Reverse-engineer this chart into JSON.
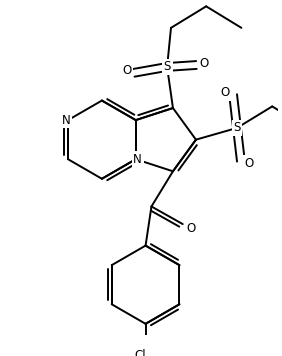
{
  "bg_color": "#ffffff",
  "bond_color": "#000000",
  "lw": 1.4,
  "fs": 8.5,
  "figsize": [
    2.82,
    3.56
  ],
  "dpi": 100,
  "xlim": [
    -2.5,
    4.5
  ],
  "ylim": [
    -5.0,
    3.5
  ]
}
